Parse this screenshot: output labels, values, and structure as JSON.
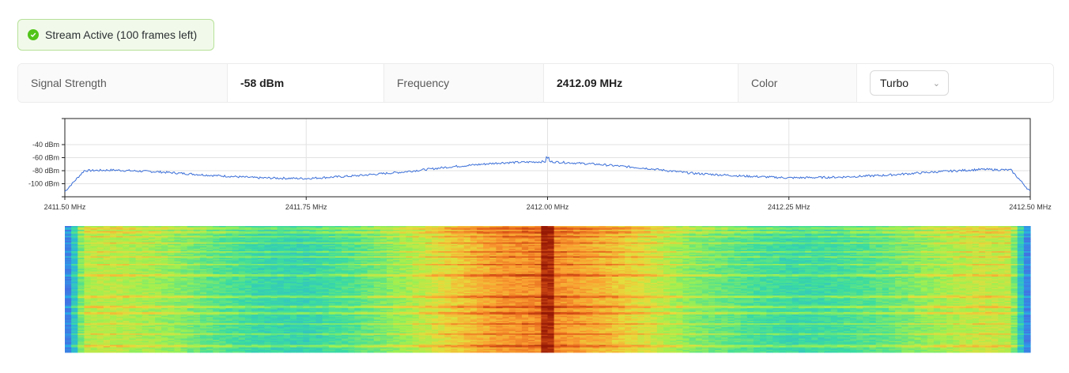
{
  "status": {
    "text": "Stream Active (100 frames left)",
    "color": "#52c41a"
  },
  "info": {
    "signal_label": "Signal Strength",
    "signal_value": "-58 dBm",
    "frequency_label": "Frequency",
    "frequency_value": "2412.09 MHz",
    "color_label": "Color",
    "color_value": "Turbo"
  },
  "chart_data": {
    "type": "line",
    "x_ticks": [
      "2411.50 MHz",
      "2411.75 MHz",
      "2412.00 MHz",
      "2412.25 MHz",
      "2412.50 MHz"
    ],
    "x_range": [
      2411.5,
      2412.5
    ],
    "y_ticks": [
      "-40 dBm",
      "-60 dBm",
      "-80 dBm",
      "-100 dBm"
    ],
    "y_range": [
      -120,
      0
    ],
    "grid": true,
    "line_color": "#3b6fd8",
    "spectrum_profile": {
      "x": [
        2411.5,
        2411.52,
        2411.55,
        2411.6,
        2411.65,
        2411.7,
        2411.75,
        2411.8,
        2411.85,
        2411.9,
        2411.95,
        2412.0,
        2412.05,
        2412.1,
        2412.15,
        2412.2,
        2412.25,
        2412.3,
        2412.35,
        2412.4,
        2412.45,
        2412.48,
        2412.5
      ],
      "y": [
        -112,
        -80,
        -79,
        -82,
        -87,
        -91,
        -92,
        -88,
        -82,
        -74,
        -68,
        -66,
        -70,
        -76,
        -84,
        -88,
        -91,
        -90,
        -87,
        -82,
        -78,
        -79,
        -112
      ]
    },
    "waterfall_colormap": "Turbo",
    "waterfall_frames": 100
  }
}
